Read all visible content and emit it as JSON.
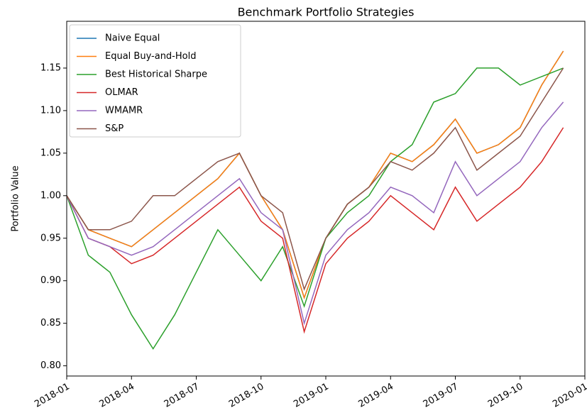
{
  "chart_data": {
    "type": "line",
    "title": "Benchmark Portfolio Strategies",
    "ylabel": "Portfolio Value",
    "x": [
      "2018-01",
      "2018-02",
      "2018-03",
      "2018-04",
      "2018-05",
      "2018-06",
      "2018-07",
      "2018-08",
      "2018-09",
      "2018-10",
      "2018-11",
      "2018-12",
      "2019-01",
      "2019-02",
      "2019-03",
      "2019-04",
      "2019-05",
      "2019-06",
      "2019-07",
      "2019-08",
      "2019-09",
      "2019-10",
      "2019-11",
      "2019-12"
    ],
    "series": [
      {
        "name": "Naive Equal",
        "color": "#1f77b4",
        "values": [
          1.0,
          0.96,
          0.95,
          0.94,
          0.96,
          0.98,
          1.0,
          1.02,
          1.05,
          1.0,
          0.96,
          0.88,
          0.95,
          0.99,
          1.01,
          1.05,
          1.04,
          1.06,
          1.09,
          1.05,
          1.06,
          1.08,
          1.13,
          1.17
        ]
      },
      {
        "name": "Equal Buy-and-Hold",
        "color": "#ff7f0e",
        "values": [
          1.0,
          0.96,
          0.95,
          0.94,
          0.96,
          0.98,
          1.0,
          1.02,
          1.05,
          1.0,
          0.96,
          0.88,
          0.95,
          0.99,
          1.01,
          1.05,
          1.04,
          1.06,
          1.09,
          1.05,
          1.06,
          1.08,
          1.13,
          1.17
        ]
      },
      {
        "name": "Best Historical Sharpe",
        "color": "#2ca02c",
        "values": [
          1.0,
          0.93,
          0.91,
          0.86,
          0.82,
          0.86,
          0.91,
          0.96,
          0.93,
          0.9,
          0.94,
          0.87,
          0.95,
          0.98,
          1.0,
          1.04,
          1.06,
          1.11,
          1.12,
          1.15,
          1.15,
          1.13,
          1.14,
          1.15
        ]
      },
      {
        "name": "OLMAR",
        "color": "#d62728",
        "values": [
          1.0,
          0.95,
          0.94,
          0.92,
          0.93,
          0.95,
          0.97,
          0.99,
          1.01,
          0.97,
          0.95,
          0.84,
          0.92,
          0.95,
          0.97,
          1.0,
          0.98,
          0.96,
          1.01,
          0.97,
          0.99,
          1.01,
          1.04,
          1.08
        ]
      },
      {
        "name": "WMAMR",
        "color": "#9467bd",
        "values": [
          1.0,
          0.95,
          0.94,
          0.93,
          0.94,
          0.96,
          0.98,
          1.0,
          1.02,
          0.98,
          0.96,
          0.85,
          0.93,
          0.96,
          0.98,
          1.01,
          1.0,
          0.98,
          1.04,
          1.0,
          1.02,
          1.04,
          1.08,
          1.11
        ]
      },
      {
        "name": "S&P",
        "color": "#8c564b",
        "values": [
          1.0,
          0.96,
          0.96,
          0.97,
          1.0,
          1.0,
          1.02,
          1.04,
          1.05,
          1.0,
          0.98,
          0.89,
          0.95,
          0.99,
          1.01,
          1.04,
          1.03,
          1.05,
          1.08,
          1.03,
          1.05,
          1.07,
          1.11,
          1.15
        ]
      }
    ],
    "xlim": [
      "2018-01",
      "2020-01"
    ],
    "xticks": [
      "2018-01",
      "2018-04",
      "2018-07",
      "2018-10",
      "2019-01",
      "2019-04",
      "2019-07",
      "2019-10",
      "2020-01"
    ],
    "ylim": [
      0.788,
      1.205
    ],
    "yticks": [
      {
        "value": 0.8,
        "label": "0.80"
      },
      {
        "value": 0.85,
        "label": "0.85"
      },
      {
        "value": 0.9,
        "label": "0.90"
      },
      {
        "value": 0.95,
        "label": "0.95"
      },
      {
        "value": 1.0,
        "label": "1.00"
      },
      {
        "value": 1.05,
        "label": "1.05"
      },
      {
        "value": 1.1,
        "label": "1.10"
      },
      {
        "value": 1.15,
        "label": "1.15"
      }
    ],
    "legend": "upper left"
  }
}
